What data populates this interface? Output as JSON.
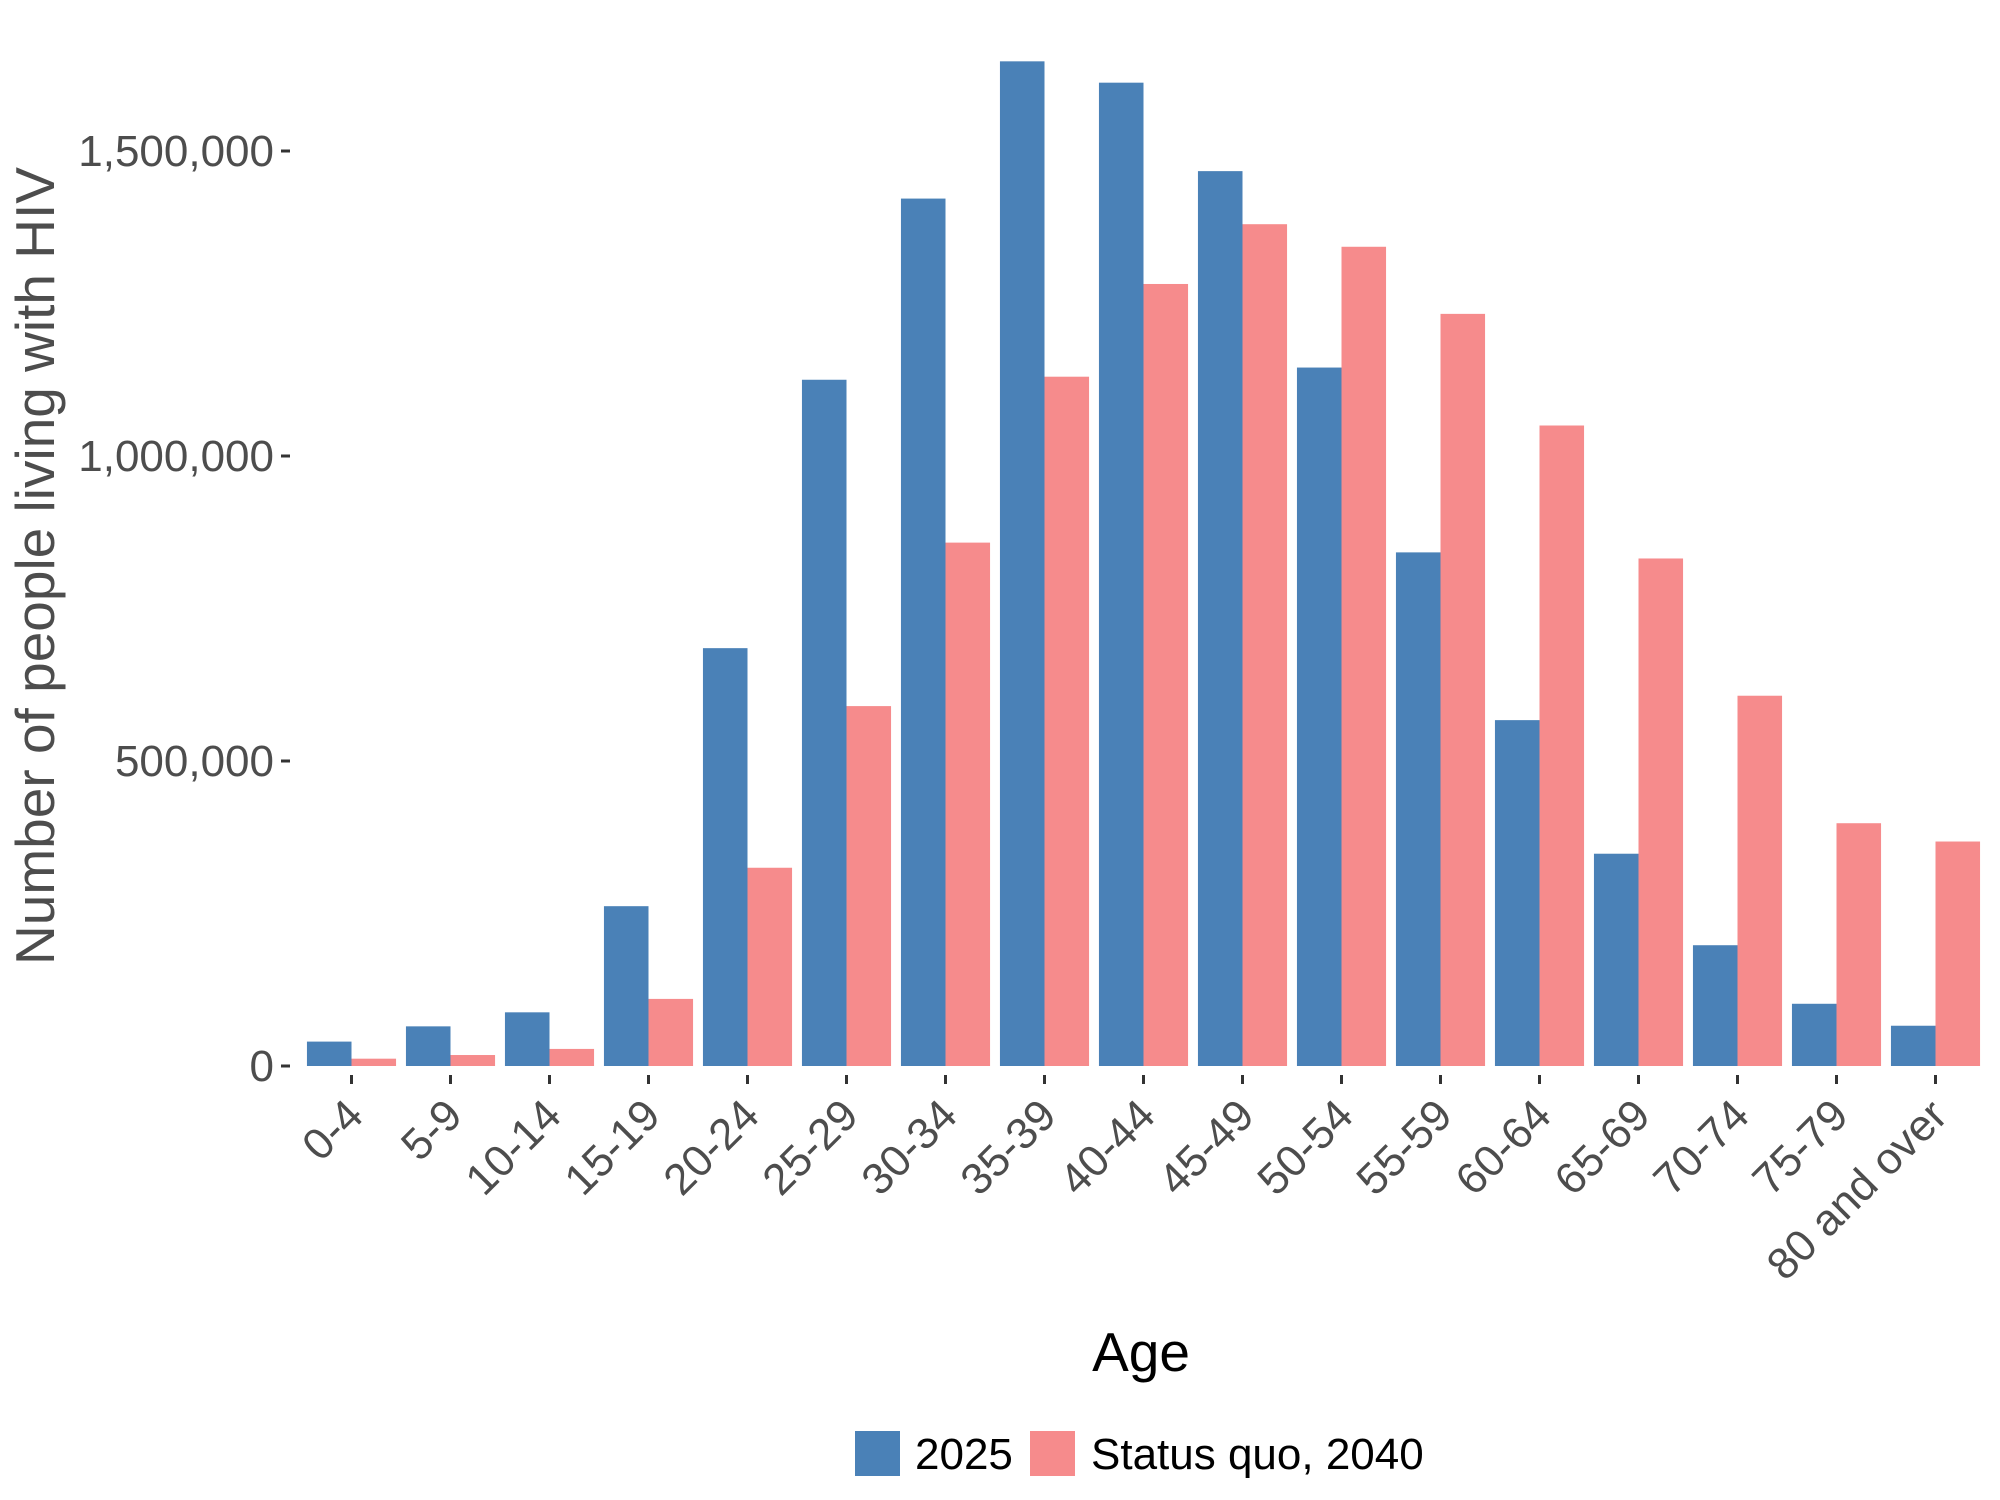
{
  "chart_data": {
    "type": "bar",
    "title": "",
    "xlabel": "Age",
    "ylabel": "Number of people living with HIV",
    "categories": [
      "0-4",
      "5-9",
      "10-14",
      "15-19",
      "20-24",
      "25-29",
      "30-34",
      "35-39",
      "40-44",
      "45-49",
      "50-54",
      "55-59",
      "60-64",
      "65-69",
      "70-74",
      "75-79",
      "80 and over"
    ],
    "series": [
      {
        "name": "2025",
        "color": "#4A81B7",
        "values": [
          40000,
          65000,
          88000,
          262000,
          685000,
          1125000,
          1422000,
          1647000,
          1612000,
          1467000,
          1145000,
          842000,
          567000,
          348000,
          198000,
          102000,
          66000
        ]
      },
      {
        "name": "Status quo, 2040",
        "color": "#F68B8C",
        "values": [
          12000,
          18000,
          28000,
          110000,
          325000,
          590000,
          858000,
          1130000,
          1282000,
          1380000,
          1343000,
          1233000,
          1050000,
          832000,
          607000,
          398000,
          368000
        ]
      }
    ],
    "ylim": [
      0,
      1650000
    ],
    "yticks": [
      0,
      500000,
      1000000,
      1500000
    ],
    "ytick_labels": [
      "0",
      "500,000",
      "1,000,000",
      "1,500,000"
    ],
    "grid": false,
    "legend_position": "bottom"
  }
}
